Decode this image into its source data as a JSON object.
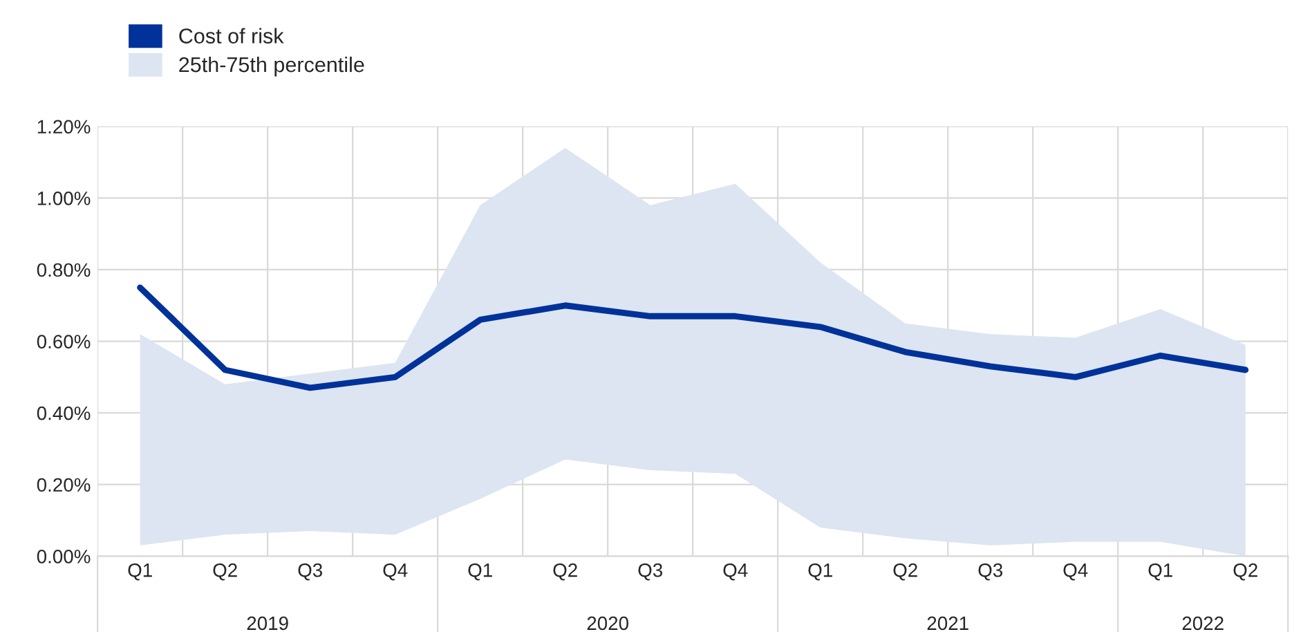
{
  "chart_data": {
    "type": "line",
    "categories": [
      "Q1",
      "Q2",
      "Q3",
      "Q4",
      "Q1",
      "Q2",
      "Q3",
      "Q4",
      "Q1",
      "Q2",
      "Q3",
      "Q4",
      "Q1",
      "Q2"
    ],
    "annotations": [
      "2019",
      "2020",
      "2021",
      "2022"
    ],
    "series": [
      {
        "name": "25th-75th percentile",
        "type": "area",
        "color": "#dce5f1",
        "values": [
          null,
          null,
          null,
          null,
          null,
          null,
          null,
          null,
          null,
          null,
          null,
          null,
          null,
          null
        ],
        "lower": [
          0.03,
          0.06,
          0.07,
          0.06,
          0.16,
          0.27,
          0.24,
          0.23,
          0.08,
          0.05,
          0.03,
          0.04,
          0.04,
          0.0
        ],
        "upper": [
          0.62,
          0.48,
          0.51,
          0.54,
          0.98,
          1.14,
          0.98,
          1.04,
          0.82,
          0.65,
          0.62,
          0.61,
          0.69,
          0.59
        ]
      },
      {
        "name": "Cost of risk",
        "type": "line",
        "color": "#003299",
        "values": [
          0.75,
          0.52,
          0.47,
          0.5,
          0.66,
          0.7,
          0.67,
          0.67,
          0.64,
          0.57,
          0.53,
          0.5,
          0.56,
          0.52
        ]
      }
    ],
    "ylim": [
      0,
      1.2
    ],
    "yticks": [
      {
        "value": 0,
        "label": "0.00%"
      },
      {
        "value": 0.2,
        "label": "0.20%"
      },
      {
        "value": 0.4,
        "label": "0.40%"
      },
      {
        "value": 0.6,
        "label": "0.60%"
      },
      {
        "value": 0.8,
        "label": "0.80%"
      },
      {
        "value": 1.0,
        "label": "1.00%"
      },
      {
        "value": 1.2,
        "label": "1.20%"
      }
    ],
    "grid": true,
    "legend": "top left",
    "marker": "none",
    "line_style": "solid"
  }
}
